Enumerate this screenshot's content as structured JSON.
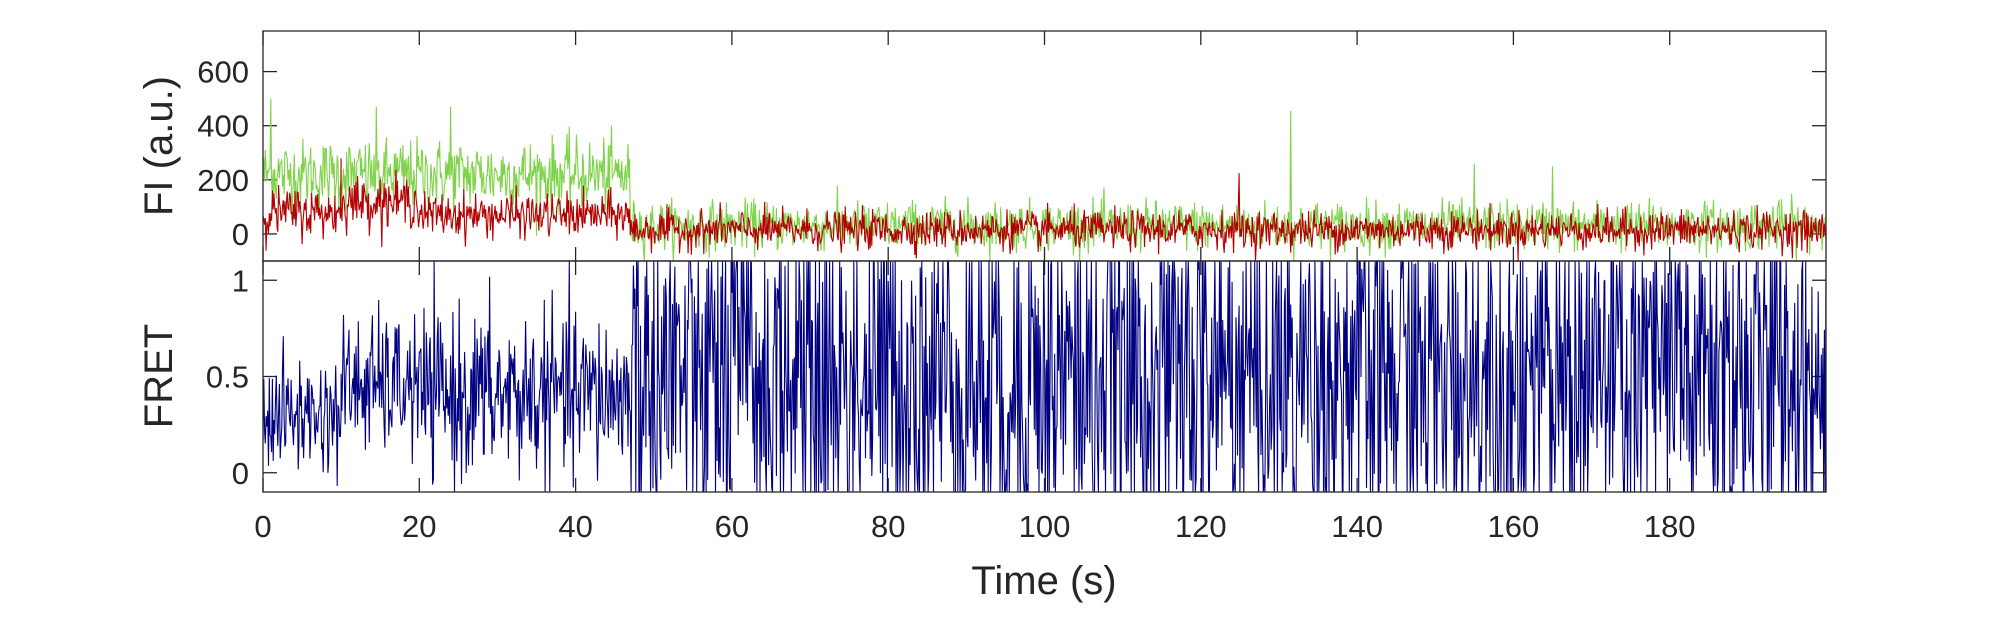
{
  "chart_data": [
    {
      "type": "line",
      "panel": "intensity",
      "xlabel": "",
      "ylabel": "FI (a.u.)",
      "xlim": [
        0,
        200
      ],
      "ylim": [
        -100,
        750
      ],
      "yticks": [
        0,
        200,
        400,
        600
      ],
      "yticklabels": [
        "0",
        "200",
        "400",
        "600"
      ],
      "series": [
        {
          "color": "#7fd34a",
          "segments": [
            {
              "x0": 0,
              "x1": 47,
              "mean": 220,
              "sd": 65
            },
            {
              "x0": 47,
              "x1": 200,
              "mean": 30,
              "sd": 45
            }
          ],
          "spikes": [
            [
              1,
              500
            ],
            [
              14.5,
              470
            ],
            [
              24,
              470
            ],
            [
              131.5,
              455
            ],
            [
              155,
              260
            ],
            [
              165,
              250
            ]
          ]
        },
        {
          "color": "#b30000",
          "segments": [
            {
              "x0": 0,
              "x1": 10,
              "mean": 80,
              "sd": 45
            },
            {
              "x0": 10,
              "x1": 20,
              "mean": 120,
              "sd": 45
            },
            {
              "x0": 20,
              "x1": 47,
              "mean": 70,
              "sd": 40
            },
            {
              "x0": 47,
              "x1": 200,
              "mean": 15,
              "sd": 35
            }
          ],
          "spikes": [
            [
              10,
              280
            ],
            [
              125,
              225
            ]
          ]
        }
      ]
    },
    {
      "type": "line",
      "panel": "fret",
      "xlabel": "Time (s)",
      "ylabel": "FRET",
      "xlim": [
        0,
        200
      ],
      "ylim": [
        -0.1,
        1.1
      ],
      "xticks": [
        0,
        20,
        40,
        60,
        80,
        100,
        120,
        140,
        160,
        180
      ],
      "xticklabels": [
        "0",
        "20",
        "40",
        "60",
        "80",
        "100",
        "120",
        "140",
        "160",
        "180"
      ],
      "yticks": [
        0,
        0.5,
        1
      ],
      "yticklabels": [
        "0",
        "0.5",
        "1"
      ],
      "series": [
        {
          "color": "#000080",
          "segments": [
            {
              "x0": 0,
              "x1": 10,
              "mean": 0.3,
              "sd": 0.15
            },
            {
              "x0": 10,
              "x1": 20,
              "mean": 0.45,
              "sd": 0.18
            },
            {
              "x0": 20,
              "x1": 47,
              "mean": 0.4,
              "sd": 0.22
            },
            {
              "x0": 47,
              "x1": 200,
              "mean": 0.5,
              "sd": 0.55
            }
          ],
          "clip": [
            -0.1,
            1.1
          ]
        }
      ]
    }
  ]
}
